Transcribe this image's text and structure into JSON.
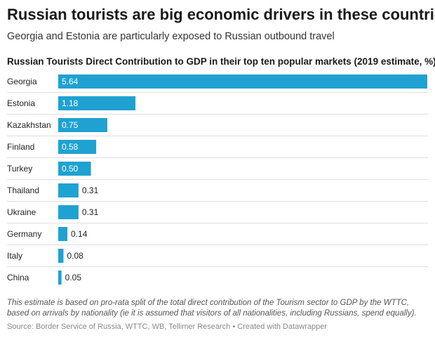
{
  "header": {
    "title": "Russian tourists are big economic drivers in these countries",
    "subtitle": "Georgia and Estonia are particularly exposed to Russian outbound travel"
  },
  "footer": {
    "note": "This estimate is based on pro-rata split of the total direct contribution of the Tourism sector to GDP by the WTTC, based on arrivals by nationality (ie it is assumed that visitors of all nationalities, including Russians, spend equally).",
    "source": "Source: Border Service of Russia, WTTC, WB, Tellimer Research • Created with Datawrapper"
  },
  "colors": {
    "bar": "#1fa2d1",
    "label_inside": "#ffffff",
    "label_outside": "#222222"
  },
  "chart_data": {
    "type": "bar",
    "orientation": "horizontal",
    "title": "Russian Tourists Direct Contribution to GDP in their top ten popular markets (2019 estimate, %)",
    "categories": [
      "Georgia",
      "Estonia",
      "Kazakhstan",
      "Finland",
      "Turkey",
      "Thailand",
      "Ukraine",
      "Germany",
      "Italy",
      "China"
    ],
    "values": [
      5.64,
      1.18,
      0.75,
      0.58,
      0.5,
      0.31,
      0.31,
      0.14,
      0.08,
      0.05
    ],
    "value_labels": [
      "5.64",
      "1.18",
      "0.75",
      "0.58",
      "0.50",
      "0.31",
      "0.31",
      "0.14",
      "0.08",
      "0.05"
    ],
    "xlim": [
      0,
      5.64
    ],
    "grid": false,
    "legend": "none"
  }
}
